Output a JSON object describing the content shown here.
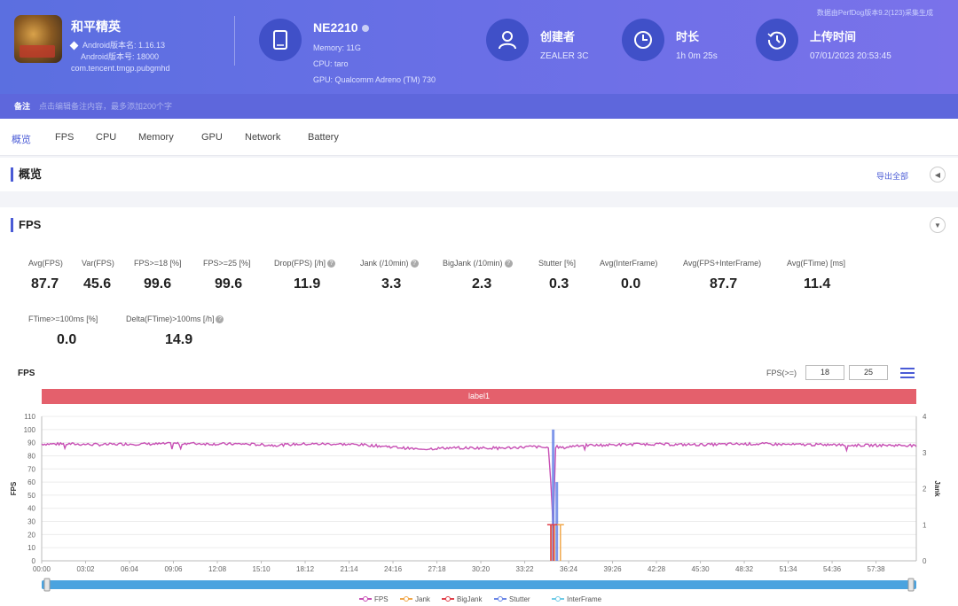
{
  "header": {
    "app": {
      "name": "和平精英",
      "version_line": "Android版本名: 1.16.13",
      "version_code_line": "Android版本号: 18000",
      "package": "com.tencent.tmgp.pubgmhd"
    },
    "device": {
      "name": "NE2210",
      "memory_line": "Memory: 11G",
      "cpu_line": "CPU: taro",
      "gpu_line": "GPU: Qualcomm Adreno (TM) 730"
    },
    "creator": {
      "label": "创建者",
      "value": "ZEALER 3C"
    },
    "duration": {
      "label": "时长",
      "value": "1h 0m 25s"
    },
    "upload_time": {
      "label": "上传时间",
      "value": "07/01/2023 20:53:45"
    },
    "version_note": "数据由PerfDog版本9.2(123)采集生成"
  },
  "note_bar": {
    "label": "备注",
    "placeholder": "点击编辑备注内容，最多添加200个字"
  },
  "tabs": [
    {
      "label": "概览",
      "active": true
    },
    {
      "label": "FPS"
    },
    {
      "label": "CPU"
    },
    {
      "label": "Memory"
    },
    {
      "label": "GPU"
    },
    {
      "label": "Network"
    },
    {
      "label": "Battery"
    }
  ],
  "overview": {
    "title": "概览",
    "export_label": "导出全部"
  },
  "fps_section": {
    "title": "FPS",
    "stats": [
      {
        "label": "Avg(FPS)",
        "value": "87.7"
      },
      {
        "label": "Var(FPS)",
        "value": "45.6"
      },
      {
        "label": "FPS>=18 [%]",
        "value": "99.6"
      },
      {
        "label": "FPS>=25 [%]",
        "value": "99.6"
      },
      {
        "label": "Drop(FPS) [/h]",
        "value": "11.9"
      },
      {
        "label": "Jank (/10min)",
        "value": "3.3"
      },
      {
        "label": "BigJank (/10min)",
        "value": "2.3"
      },
      {
        "label": "Stutter [%]",
        "value": "0.3"
      },
      {
        "label": "Avg(InterFrame)",
        "value": "0.0"
      },
      {
        "label": "Avg(FPS+InterFrame)",
        "value": "87.7"
      },
      {
        "label": "Avg(FTime) [ms]",
        "value": "11.4"
      },
      {
        "label": "FTime>=100ms [%]",
        "value": "0.0"
      },
      {
        "label": "Delta(FTime)>100ms [/h]",
        "value": "14.9"
      }
    ]
  },
  "chart_controls": {
    "title": "FPS",
    "threshold_label": "FPS(>=)",
    "threshold_1": "18",
    "threshold_2": "25",
    "label_bar": "label1"
  },
  "chart_data": {
    "type": "line",
    "title": "",
    "ylabel": "FPS",
    "y2label": "Jank",
    "ylim": [
      0,
      110
    ],
    "y2lim": [
      0,
      4
    ],
    "yticks": [
      "0",
      "10",
      "20",
      "30",
      "40",
      "50",
      "60",
      "70",
      "80",
      "90",
      "100",
      "110"
    ],
    "y2ticks": [
      "0",
      "1",
      "2",
      "3",
      "4"
    ],
    "x_ticks": [
      "00:00",
      "03:02",
      "06:04",
      "09:06",
      "12:08",
      "15:10",
      "18:12",
      "21:14",
      "24:16",
      "27:18",
      "30:20",
      "33:22",
      "36:24",
      "39:26",
      "42:28",
      "45:30",
      "48:32",
      "51:34",
      "54:36",
      "57:38"
    ],
    "xlim_seconds": [
      0,
      3625
    ],
    "series": [
      {
        "name": "FPS",
        "color": "#c74fb4",
        "points": [
          [
            0,
            89
          ],
          [
            120,
            89
          ],
          [
            240,
            88.5
          ],
          [
            360,
            89
          ],
          [
            480,
            89
          ],
          [
            600,
            89.5
          ],
          [
            720,
            89
          ],
          [
            840,
            89
          ],
          [
            960,
            88
          ],
          [
            1080,
            89
          ],
          [
            1200,
            89
          ],
          [
            1320,
            88.5
          ],
          [
            1440,
            87
          ],
          [
            1500,
            86
          ],
          [
            1560,
            85
          ],
          [
            1680,
            86
          ],
          [
            1800,
            86
          ],
          [
            1920,
            86
          ],
          [
            2040,
            87
          ],
          [
            2100,
            86
          ],
          [
            2110,
            60
          ],
          [
            2120,
            25
          ],
          [
            2130,
            87
          ],
          [
            2160,
            86
          ],
          [
            2220,
            88
          ],
          [
            2300,
            88
          ],
          [
            2400,
            88.5
          ],
          [
            2520,
            89
          ],
          [
            2640,
            88.5
          ],
          [
            2760,
            88.5
          ],
          [
            2880,
            89
          ],
          [
            3000,
            89
          ],
          [
            3120,
            88.5
          ],
          [
            3240,
            88.5
          ],
          [
            3360,
            88
          ],
          [
            3480,
            88
          ],
          [
            3600,
            88
          ],
          [
            3625,
            87
          ]
        ]
      },
      {
        "name": "Jank",
        "color": "#f0a74a",
        "points": [
          [
            2112,
            1
          ],
          [
            2125,
            1
          ],
          [
            2150,
            1
          ]
        ]
      },
      {
        "name": "BigJank",
        "color": "#e0404a",
        "points": [
          [
            2110,
            1
          ],
          [
            2122,
            1
          ]
        ]
      },
      {
        "name": "Stutter",
        "color": "#6a86e6",
        "points": [
          [
            2120,
            100
          ],
          [
            2135,
            60
          ]
        ]
      },
      {
        "name": "InterFrame",
        "color": "#70cbe6",
        "points": []
      }
    ]
  },
  "legend": [
    {
      "name": "FPS",
      "color": "#c74fb4"
    },
    {
      "name": "Jank",
      "color": "#f0a74a"
    },
    {
      "name": "BigJank",
      "color": "#e0404a"
    },
    {
      "name": "Stutter",
      "color": "#6a86e6"
    },
    {
      "name": "InterFrame",
      "color": "#70cbe6"
    }
  ]
}
